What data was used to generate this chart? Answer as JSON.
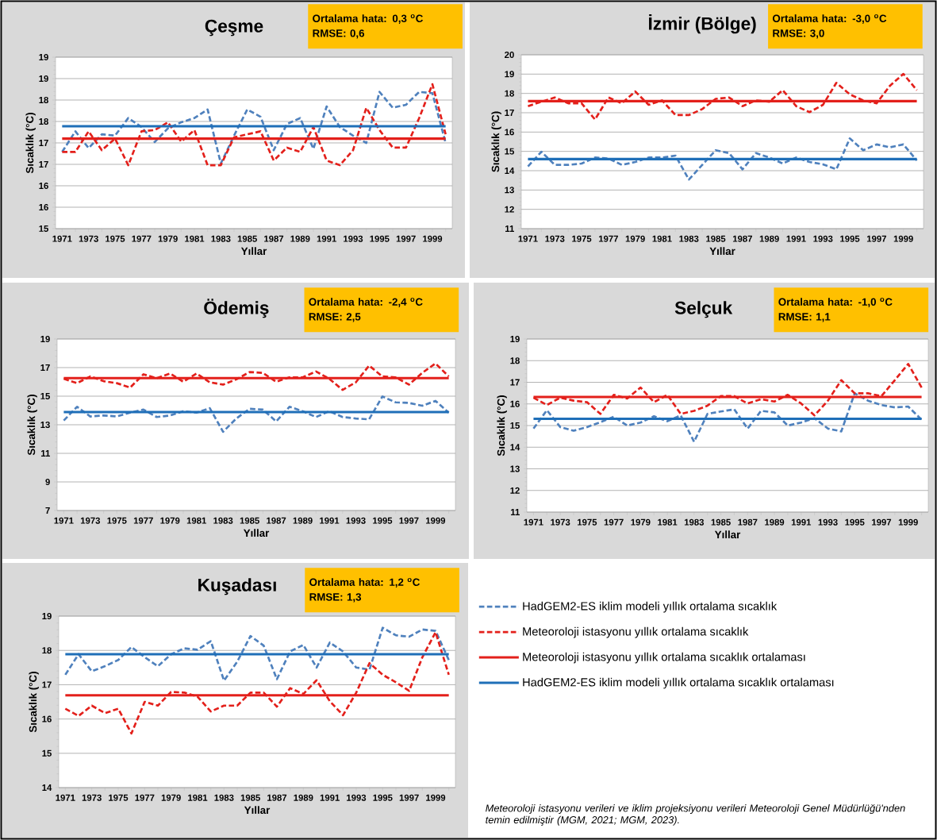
{
  "chart_data": [
    {
      "type": "line",
      "title": "Çeşme",
      "xlabel": "Yıllar",
      "ylabel": "Sıcaklık (°C)",
      "categories": [
        "1971",
        null,
        "1973",
        null,
        "1975",
        null,
        "1977",
        null,
        "1979",
        null,
        "1981",
        null,
        "1983",
        null,
        "1985",
        null,
        "1987",
        null,
        "1989",
        null,
        "1991",
        null,
        "1993",
        null,
        "1995",
        null,
        "1997",
        null,
        "1999",
        null
      ],
      "ylim": [
        15,
        19
      ],
      "yticks": [
        15,
        {
          "value": 15.5,
          "label": "16"
        },
        16,
        {
          "value": 16.5,
          "label": "17"
        },
        17,
        {
          "value": 17.5,
          "label": "18"
        },
        18,
        {
          "value": 18.5,
          "label": "19"
        },
        19
      ],
      "grid": "y",
      "annotations": [
        "Ortalama hata: 0,3 $^{o}$C",
        "RMSE: 0,6"
      ],
      "series": [
        {
          "color": "#4f81bd",
          "line_style": "dashed",
          "values": [
            16.79,
            17.27,
            16.88,
            17.2,
            17.17,
            17.58,
            17.37,
            17.02,
            17.34,
            17.48,
            17.58,
            17.78,
            16.52,
            17.17,
            17.78,
            17.61,
            16.83,
            17.44,
            17.58,
            16.86,
            17.85,
            17.37,
            17.17,
            17.0,
            18.19,
            17.82,
            17.89,
            18.19,
            18.16,
            17.0
          ]
        },
        {
          "color": "#e3201b",
          "line_style": "dashed",
          "values": [
            16.79,
            16.79,
            17.27,
            16.83,
            17.1,
            16.48,
            17.27,
            17.3,
            17.48,
            17.03,
            17.3,
            16.48,
            16.48,
            17.13,
            17.2,
            17.27,
            16.59,
            16.89,
            16.79,
            17.37,
            16.59,
            16.48,
            16.83,
            17.82,
            17.3,
            16.89,
            16.89,
            17.58,
            18.37,
            17.2
          ]
        },
        {
          "color": "#e3201b",
          "line_style": "solid",
          "values": [
            17.1,
            17.1,
            17.1,
            17.1,
            17.1,
            17.1,
            17.1,
            17.1,
            17.1,
            17.1,
            17.1,
            17.1,
            17.1,
            17.1,
            17.1,
            17.1,
            17.1,
            17.1,
            17.1,
            17.1,
            17.1,
            17.1,
            17.1,
            17.1,
            17.1,
            17.1,
            17.1,
            17.1,
            17.1,
            17.1
          ]
        },
        {
          "color": "#1f6fb8",
          "line_style": "solid",
          "values": [
            17.39,
            17.39,
            17.39,
            17.39,
            17.39,
            17.39,
            17.39,
            17.39,
            17.39,
            17.39,
            17.39,
            17.39,
            17.39,
            17.39,
            17.39,
            17.39,
            17.39,
            17.39,
            17.39,
            17.39,
            17.39,
            17.39,
            17.39,
            17.39,
            17.39,
            17.39,
            17.39,
            17.39,
            17.39,
            17.39
          ]
        }
      ]
    },
    {
      "type": "line",
      "title": "İzmir (Bölge)",
      "xlabel": "Yıllar",
      "ylabel": "Sıcaklık (°C)",
      "categories": [
        "1971",
        null,
        "1973",
        null,
        "1975",
        null,
        "1977",
        null,
        "1979",
        null,
        "1981",
        null,
        "1983",
        null,
        "1985",
        null,
        "1987",
        null,
        "1989",
        null,
        "1991",
        null,
        "1993",
        null,
        "1995",
        null,
        "1997",
        null,
        "1999",
        null
      ],
      "ylim": [
        11,
        20
      ],
      "yticks": [
        11,
        12,
        13,
        14,
        15,
        16,
        17,
        18,
        19,
        20
      ],
      "grid": "y",
      "annotations": [
        "Ortalama hata: -3,0 $^{o}$C",
        "RMSE: 3,0"
      ],
      "series": [
        {
          "color": "#4f81bd",
          "line_style": "dashed",
          "values": [
            14.22,
            14.98,
            14.3,
            14.3,
            14.37,
            14.68,
            14.63,
            14.3,
            14.45,
            14.68,
            14.68,
            14.78,
            13.54,
            14.3,
            15.06,
            14.91,
            14.07,
            14.91,
            14.68,
            14.37,
            14.68,
            14.45,
            14.33,
            14.07,
            15.67,
            15.06,
            15.36,
            15.21,
            15.36,
            14.53
          ]
        },
        {
          "color": "#e3201b",
          "line_style": "dashed",
          "values": [
            17.34,
            17.57,
            17.79,
            17.49,
            17.49,
            16.65,
            17.79,
            17.49,
            18.1,
            17.41,
            17.64,
            16.88,
            16.88,
            17.19,
            17.72,
            17.79,
            17.34,
            17.64,
            17.57,
            18.17,
            17.34,
            17.03,
            17.41,
            18.55,
            17.95,
            17.64,
            17.49,
            18.4,
            19.01,
            18.17
          ]
        },
        {
          "color": "#e3201b",
          "line_style": "solid",
          "values": [
            17.6,
            17.6,
            17.6,
            17.6,
            17.6,
            17.6,
            17.6,
            17.6,
            17.6,
            17.6,
            17.6,
            17.6,
            17.6,
            17.6,
            17.6,
            17.6,
            17.6,
            17.6,
            17.6,
            17.6,
            17.6,
            17.6,
            17.6,
            17.6,
            17.6,
            17.6,
            17.6,
            17.6,
            17.6,
            17.6
          ]
        },
        {
          "color": "#1f6fb8",
          "line_style": "solid",
          "values": [
            14.6,
            14.6,
            14.6,
            14.6,
            14.6,
            14.6,
            14.6,
            14.6,
            14.6,
            14.6,
            14.6,
            14.6,
            14.6,
            14.6,
            14.6,
            14.6,
            14.6,
            14.6,
            14.6,
            14.6,
            14.6,
            14.6,
            14.6,
            14.6,
            14.6,
            14.6,
            14.6,
            14.6,
            14.6,
            14.6
          ]
        }
      ]
    },
    {
      "type": "line",
      "title": "Ödemiş",
      "xlabel": "Yıllar",
      "ylabel": "Sıcaklık (°C)",
      "categories": [
        "1971",
        null,
        "1973",
        null,
        "1975",
        null,
        "1977",
        null,
        "1979",
        null,
        "1981",
        null,
        "1983",
        null,
        "1985",
        null,
        "1987",
        null,
        "1989",
        null,
        "1991",
        null,
        "1993",
        null,
        "1995",
        null,
        "1997",
        null,
        "1999",
        null
      ],
      "ylim": [
        7,
        19
      ],
      "yticks": [
        7,
        9,
        11,
        13,
        15,
        17,
        19
      ],
      "grid": "y",
      "annotations": [
        "Ortalama hata: -2,4 $^{o}$C",
        "RMSE: 2,5"
      ],
      "series": [
        {
          "color": "#4f81bd",
          "line_style": "dashed",
          "values": [
            13.3,
            14.26,
            13.58,
            13.65,
            13.58,
            13.85,
            14.06,
            13.54,
            13.65,
            13.95,
            13.85,
            14.16,
            12.51,
            13.44,
            14.12,
            14.06,
            13.23,
            14.26,
            13.95,
            13.54,
            13.95,
            13.54,
            13.44,
            13.38,
            14.98,
            14.57,
            14.53,
            14.33,
            14.67,
            13.85
          ]
        },
        {
          "color": "#e3201b",
          "line_style": "dashed",
          "values": [
            16.22,
            15.91,
            16.38,
            16.05,
            15.91,
            15.6,
            16.53,
            16.26,
            16.59,
            16.01,
            16.59,
            15.97,
            15.81,
            16.18,
            16.69,
            16.63,
            16.01,
            16.32,
            16.32,
            16.73,
            16.22,
            15.44,
            15.97,
            17.14,
            16.38,
            16.32,
            15.81,
            16.63,
            17.29,
            16.38
          ]
        },
        {
          "color": "#e3201b",
          "line_style": "solid",
          "values": [
            16.26,
            16.26,
            16.26,
            16.26,
            16.26,
            16.26,
            16.26,
            16.26,
            16.26,
            16.26,
            16.26,
            16.26,
            16.26,
            16.26,
            16.26,
            16.26,
            16.26,
            16.26,
            16.26,
            16.26,
            16.26,
            16.26,
            16.26,
            16.26,
            16.26,
            16.26,
            16.26,
            16.26,
            16.26,
            16.26
          ]
        },
        {
          "color": "#1f6fb8",
          "line_style": "solid",
          "values": [
            13.89,
            13.89,
            13.89,
            13.89,
            13.89,
            13.89,
            13.89,
            13.89,
            13.89,
            13.89,
            13.89,
            13.89,
            13.89,
            13.89,
            13.89,
            13.89,
            13.89,
            13.89,
            13.89,
            13.89,
            13.89,
            13.89,
            13.89,
            13.89,
            13.89,
            13.89,
            13.89,
            13.89,
            13.89,
            13.89
          ]
        }
      ]
    },
    {
      "type": "line",
      "title": "Selçuk",
      "xlabel": "Yıllar",
      "ylabel": "Sıcaklık (°C)",
      "categories": [
        "1971",
        null,
        "1973",
        null,
        "1975",
        null,
        "1977",
        null,
        "1979",
        null,
        "1981",
        null,
        "1983",
        null,
        "1985",
        null,
        "1987",
        null,
        "1989",
        null,
        "1991",
        null,
        "1993",
        null,
        "1995",
        null,
        "1997",
        null,
        "1999",
        null
      ],
      "ylim": [
        11,
        19
      ],
      "yticks": [
        11,
        12,
        13,
        14,
        15,
        16,
        17,
        18,
        19
      ],
      "grid": "y",
      "annotations": [
        "Ortalama hata: -1,0 $^{o}$C",
        "RMSE: 1,1"
      ],
      "series": [
        {
          "color": "#4f81bd",
          "line_style": "dashed",
          "values": [
            14.86,
            15.71,
            14.93,
            14.76,
            14.93,
            15.16,
            15.41,
            15.0,
            15.14,
            15.43,
            15.2,
            15.47,
            14.25,
            15.54,
            15.65,
            15.75,
            14.86,
            15.68,
            15.61,
            15.0,
            15.14,
            15.34,
            14.86,
            14.73,
            16.49,
            16.15,
            15.95,
            15.84,
            15.88,
            15.27
          ]
        },
        {
          "color": "#e3201b",
          "line_style": "dashed",
          "values": [
            16.29,
            15.95,
            16.29,
            16.15,
            16.08,
            15.54,
            16.42,
            16.25,
            16.76,
            16.08,
            16.42,
            15.54,
            15.68,
            15.92,
            16.36,
            16.36,
            16.02,
            16.22,
            16.11,
            16.42,
            16.02,
            15.47,
            16.15,
            17.1,
            16.49,
            16.49,
            16.36,
            17.1,
            17.85,
            16.76
          ]
        },
        {
          "color": "#e3201b",
          "line_style": "solid",
          "values": [
            16.32,
            16.32,
            16.32,
            16.32,
            16.32,
            16.32,
            16.32,
            16.32,
            16.32,
            16.32,
            16.32,
            16.32,
            16.32,
            16.32,
            16.32,
            16.32,
            16.32,
            16.32,
            16.32,
            16.32,
            16.32,
            16.32,
            16.32,
            16.32,
            16.32,
            16.32,
            16.32,
            16.32,
            16.32,
            16.32
          ]
        },
        {
          "color": "#1f6fb8",
          "line_style": "solid",
          "values": [
            15.31,
            15.31,
            15.31,
            15.31,
            15.31,
            15.31,
            15.31,
            15.31,
            15.31,
            15.31,
            15.31,
            15.31,
            15.31,
            15.31,
            15.31,
            15.31,
            15.31,
            15.31,
            15.31,
            15.31,
            15.31,
            15.31,
            15.31,
            15.31,
            15.31,
            15.31,
            15.31,
            15.31,
            15.31,
            15.31
          ]
        }
      ]
    },
    {
      "type": "line",
      "title": "Kuşadası",
      "xlabel": "Yıllar",
      "ylabel": "Sıcaklık (°C)",
      "categories": [
        "1971",
        null,
        "1973",
        null,
        "1975",
        null,
        "1977",
        null,
        "1979",
        null,
        "1981",
        null,
        "1983",
        null,
        "1985",
        null,
        "1987",
        null,
        "1989",
        null,
        "1991",
        null,
        "1993",
        null,
        "1995",
        null,
        "1997",
        null,
        "1999",
        null
      ],
      "ylim": [
        14,
        19
      ],
      "yticks": [
        14,
        15,
        16,
        17,
        18,
        19
      ],
      "grid": "y",
      "legend": "right",
      "annotations": [
        "Ortalama hata: 1,2 $^{o}$C",
        "RMSE: 1,3",
        "Meteoroloji istasyonu verileri ve iklim projeksiyonu verileri Meteoroloji Genel Müdürlüğü'nden temin edilmiştir (MGM, 2021; MGM, 2023)."
      ],
      "series": [
        {
          "name": "HadGEM2-ES iklim modeli yıllık ortalama sıcaklık",
          "color": "#4f81bd",
          "line_style": "dashed",
          "values": [
            17.29,
            17.89,
            17.39,
            17.54,
            17.72,
            18.1,
            17.8,
            17.54,
            17.89,
            18.06,
            18.02,
            18.27,
            17.12,
            17.67,
            18.42,
            18.14,
            17.16,
            17.97,
            18.16,
            17.5,
            18.23,
            17.97,
            17.5,
            17.44,
            18.66,
            18.44,
            18.4,
            18.61,
            18.57,
            17.72
          ]
        },
        {
          "name": "Meteoroloji istasyonu yıllık ortalama sıcaklık",
          "color": "#e3201b",
          "line_style": "dashed",
          "values": [
            16.3,
            16.09,
            16.39,
            16.17,
            16.3,
            15.58,
            16.5,
            16.39,
            16.79,
            16.77,
            16.65,
            16.22,
            16.39,
            16.39,
            16.77,
            16.77,
            16.36,
            16.9,
            16.73,
            17.13,
            16.52,
            16.11,
            16.77,
            17.63,
            17.29,
            17.07,
            16.82,
            17.8,
            18.53,
            17.29
          ]
        },
        {
          "name": "Meteoroloji istasyonu yıllık ortalama sıcaklık ortalaması",
          "color": "#e3201b",
          "line_style": "solid",
          "values": [
            16.69,
            16.69,
            16.69,
            16.69,
            16.69,
            16.69,
            16.69,
            16.69,
            16.69,
            16.69,
            16.69,
            16.69,
            16.69,
            16.69,
            16.69,
            16.69,
            16.69,
            16.69,
            16.69,
            16.69,
            16.69,
            16.69,
            16.69,
            16.69,
            16.69,
            16.69,
            16.69,
            16.69,
            16.69,
            16.69
          ]
        },
        {
          "name": "HadGEM2-ES iklim modeli yıllık ortalama sıcaklık ortalaması",
          "color": "#1f6fb8",
          "line_style": "solid",
          "values": [
            17.89,
            17.89,
            17.89,
            17.89,
            17.89,
            17.89,
            17.89,
            17.89,
            17.89,
            17.89,
            17.89,
            17.89,
            17.89,
            17.89,
            17.89,
            17.89,
            17.89,
            17.89,
            17.89,
            17.89,
            17.89,
            17.89,
            17.89,
            17.89,
            17.89,
            17.89,
            17.89,
            17.89,
            17.89,
            17.89
          ]
        }
      ]
    }
  ]
}
